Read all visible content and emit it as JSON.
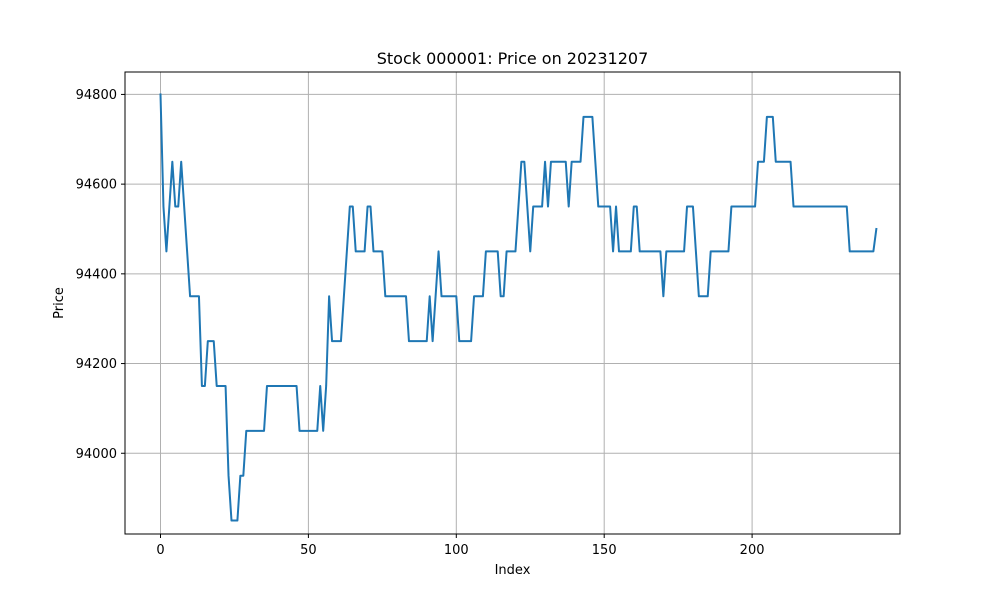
{
  "chart_data": {
    "type": "line",
    "title": "Stock 000001: Price on 20231207",
    "xlabel": "Index",
    "ylabel": "Price",
    "xlim": [
      -12,
      250
    ],
    "ylim": [
      93820,
      94850
    ],
    "x_ticks": [
      0,
      50,
      100,
      150,
      200
    ],
    "y_ticks": [
      94000,
      94200,
      94400,
      94600,
      94800
    ],
    "grid": true,
    "line_color": "#1f77b4",
    "series": [
      {
        "values": [
          94800,
          94550,
          94450,
          94550,
          94650,
          94550,
          94550,
          94650,
          94550,
          94450,
          94350,
          94350,
          94350,
          94350,
          94150,
          94150,
          94250,
          94250,
          94250,
          94150,
          94150,
          94150,
          94150,
          93950,
          93850,
          93850,
          93850,
          93950,
          93950,
          94050,
          94050,
          94050,
          94050,
          94050,
          94050,
          94050,
          94150,
          94150,
          94150,
          94150,
          94150,
          94150,
          94150,
          94150,
          94150,
          94150,
          94150,
          94050,
          94050,
          94050,
          94050,
          94050,
          94050,
          94050,
          94150,
          94050,
          94150,
          94350,
          94250,
          94250,
          94250,
          94250,
          94350,
          94450,
          94550,
          94550,
          94450,
          94450,
          94450,
          94450,
          94550,
          94550,
          94450,
          94450,
          94450,
          94450,
          94350,
          94350,
          94350,
          94350,
          94350,
          94350,
          94350,
          94350,
          94250,
          94250,
          94250,
          94250,
          94250,
          94250,
          94250,
          94350,
          94250,
          94350,
          94450,
          94350,
          94350,
          94350,
          94350,
          94350,
          94350,
          94250,
          94250,
          94250,
          94250,
          94250,
          94350,
          94350,
          94350,
          94350,
          94450,
          94450,
          94450,
          94450,
          94450,
          94350,
          94350,
          94450,
          94450,
          94450,
          94450,
          94550,
          94650,
          94650,
          94550,
          94450,
          94550,
          94550,
          94550,
          94550,
          94650,
          94550,
          94650,
          94650,
          94650,
          94650,
          94650,
          94650,
          94550,
          94650,
          94650,
          94650,
          94650,
          94750,
          94750,
          94750,
          94750,
          94650,
          94550,
          94550,
          94550,
          94550,
          94550,
          94450,
          94550,
          94450,
          94450,
          94450,
          94450,
          94450,
          94550,
          94550,
          94450,
          94450,
          94450,
          94450,
          94450,
          94450,
          94450,
          94450,
          94350,
          94450,
          94450,
          94450,
          94450,
          94450,
          94450,
          94450,
          94550,
          94550,
          94550,
          94450,
          94350,
          94350,
          94350,
          94350,
          94450,
          94450,
          94450,
          94450,
          94450,
          94450,
          94450,
          94550,
          94550,
          94550,
          94550,
          94550,
          94550,
          94550,
          94550,
          94550,
          94650,
          94650,
          94650,
          94750,
          94750,
          94750,
          94650,
          94650,
          94650,
          94650,
          94650,
          94650,
          94550,
          94550,
          94550,
          94550,
          94550,
          94550,
          94550,
          94550,
          94550,
          94550,
          94550,
          94550,
          94550,
          94550,
          94550,
          94550,
          94550,
          94550,
          94550,
          94450,
          94450,
          94450,
          94450,
          94450,
          94450,
          94450,
          94450,
          94450,
          94500
        ]
      }
    ]
  }
}
